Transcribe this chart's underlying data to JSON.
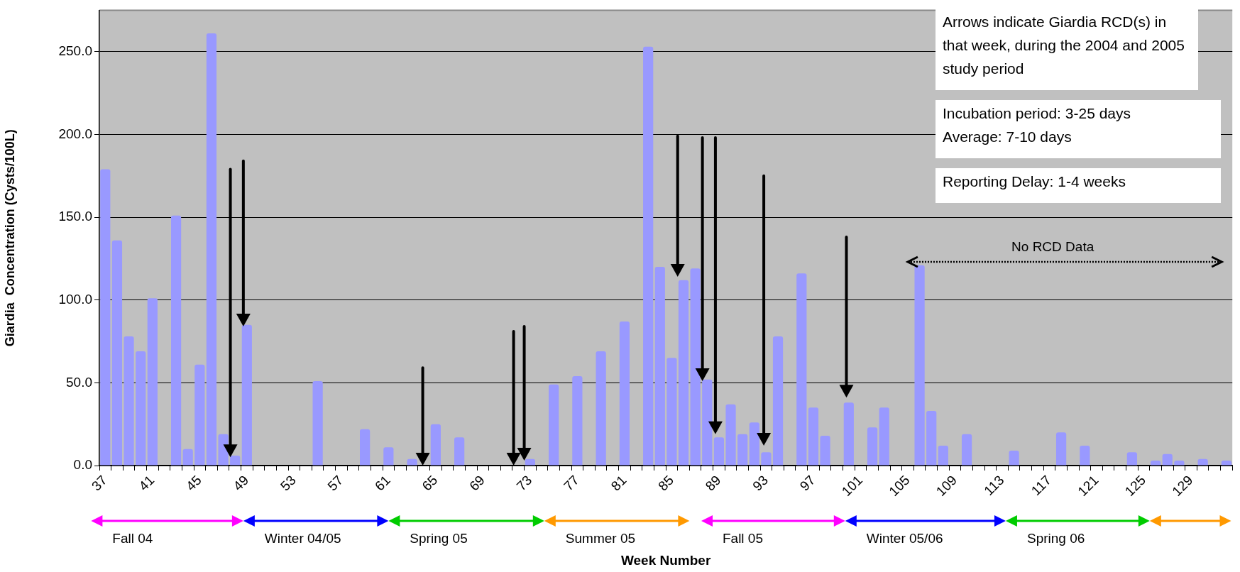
{
  "chart_data": {
    "type": "bar",
    "ylabel": "Giardia  Concentration (Cysts/100L)",
    "xlabel": "Week Number",
    "categories": [
      "37",
      null,
      null,
      null,
      "41",
      null,
      null,
      null,
      "45",
      null,
      null,
      null,
      "49",
      null,
      null,
      null,
      "53",
      null,
      null,
      null,
      "57",
      null,
      null,
      null,
      "61",
      null,
      null,
      null,
      "65",
      null,
      null,
      null,
      "69",
      null,
      null,
      null,
      "73",
      null,
      null,
      null,
      "77",
      null,
      null,
      null,
      "81",
      null,
      null,
      null,
      "85",
      null,
      null,
      null,
      "89",
      null,
      null,
      null,
      "93",
      null,
      null,
      null,
      "97",
      null,
      null,
      null,
      "101",
      null,
      null,
      null,
      "105",
      null,
      null,
      null,
      "109",
      null,
      null,
      null,
      "113",
      null,
      null,
      null,
      "117",
      null,
      null,
      null,
      "121",
      null,
      null,
      null,
      "125",
      null,
      null,
      null,
      "129",
      null,
      null,
      null
    ],
    "values": [
      179,
      136,
      78,
      69,
      101,
      0,
      151,
      10,
      61,
      261,
      19,
      6,
      85,
      0,
      0,
      0,
      0,
      0,
      51,
      0,
      0,
      0,
      22,
      0,
      11,
      0,
      4,
      0,
      25,
      0,
      17,
      0,
      0,
      0,
      0,
      0,
      4,
      0,
      49,
      0,
      54,
      0,
      69,
      0,
      87,
      0,
      253,
      120,
      65,
      112,
      119,
      52,
      17,
      37,
      19,
      26,
      8,
      78,
      0,
      116,
      35,
      18,
      0,
      38,
      0,
      23,
      35,
      0,
      0,
      121,
      33,
      12,
      0,
      19,
      0,
      0,
      0,
      9,
      0,
      0,
      0,
      20,
      0,
      12,
      0,
      0,
      0,
      8,
      0,
      3,
      7,
      3,
      0,
      4,
      0,
      3
    ],
    "color": "#9999ff",
    "ylim": [
      0,
      275
    ],
    "yticks": [
      {
        "value": 0,
        "label": "0.0"
      },
      {
        "value": 50,
        "label": "50.0"
      },
      {
        "value": 100,
        "label": "100.0"
      },
      {
        "value": 150,
        "label": "150.0"
      },
      {
        "value": 200,
        "label": "200.0"
      },
      {
        "value": 250,
        "label": "250.0"
      }
    ],
    "grid": "y",
    "annotations": [
      "Arrows indicate Giardia RCD(s) in that week, during the 2004 and 2005 study period",
      "Incubation period: 3-25 days\nAverage: 7-10 days",
      "Reporting Delay: 1-4 weeks",
      "No RCD Data",
      "Fall 04",
      "Winter 04/05",
      "Spring 05",
      "Summer 05",
      "Fall 05",
      "Winter 05/06",
      "Spring 06"
    ]
  }
}
